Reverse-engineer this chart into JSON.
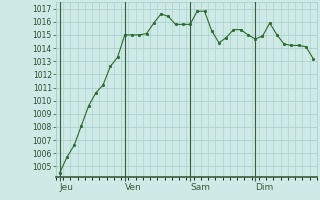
{
  "x": [
    0,
    1,
    2,
    3,
    4,
    5,
    6,
    7,
    8,
    9,
    10,
    11,
    12,
    13,
    14,
    15,
    16,
    17,
    18,
    19,
    20,
    21,
    22,
    23,
    24,
    25,
    26,
    27,
    28,
    29,
    30,
    31,
    32,
    33,
    34,
    35
  ],
  "y": [
    1004.5,
    1005.7,
    1006.6,
    1008.1,
    1009.6,
    1010.6,
    1011.2,
    1012.6,
    1013.3,
    1015.0,
    1015.0,
    1015.0,
    1015.1,
    1015.9,
    1016.6,
    1016.4,
    1015.8,
    1015.8,
    1015.8,
    1016.8,
    1016.8,
    1015.3,
    1014.4,
    1014.8,
    1015.4,
    1015.4,
    1015.0,
    1014.7,
    1014.9,
    1015.9,
    1015.0,
    1014.3,
    1014.2,
    1014.2,
    1014.1,
    1013.2
  ],
  "day_ticks": [
    0,
    9,
    18,
    27
  ],
  "day_labels": [
    "Jeu",
    "Ven",
    "Sam",
    "Dim"
  ],
  "yticks": [
    1005,
    1006,
    1007,
    1008,
    1009,
    1010,
    1011,
    1012,
    1013,
    1014,
    1015,
    1016,
    1017
  ],
  "ylim": [
    1004.2,
    1017.5
  ],
  "xlim": [
    -0.5,
    35.5
  ],
  "line_color": "#2d6a2d",
  "marker_color": "#2d6a2d",
  "bg_color": "#ceeae6",
  "grid_color": "#a8ccc8",
  "vline_color": "#3a5a3a",
  "axis_label_color": "#2d4a2d",
  "tick_fontsize": 5.5,
  "label_fontsize": 6.5
}
